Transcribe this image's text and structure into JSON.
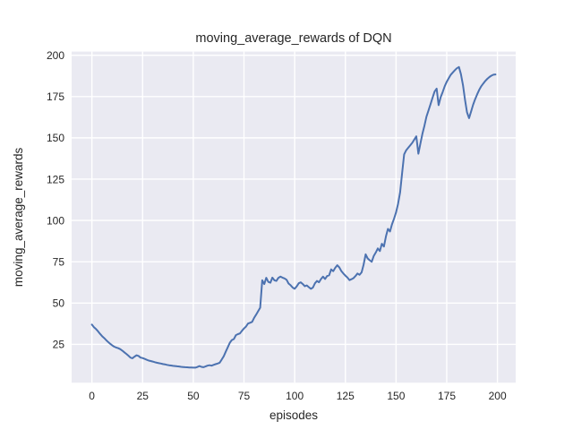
{
  "figure": {
    "background": "#ffffff",
    "plot_background": "#eaeaf2",
    "grid_color": "#ffffff",
    "text_color": "#262626"
  },
  "chart_data": {
    "type": "line",
    "title": "moving_average_rewards of DQN",
    "xlabel": "episodes",
    "ylabel": "moving_average_rewards",
    "x_ticks": [
      0,
      25,
      50,
      75,
      100,
      125,
      150,
      175,
      200
    ],
    "y_ticks": [
      25,
      50,
      75,
      100,
      125,
      150,
      175,
      200
    ],
    "xlim": [
      -10,
      209
    ],
    "ylim": [
      1.8,
      202.2
    ],
    "grid": true,
    "legend_position": "none",
    "series": [
      {
        "name": "DQN moving_average_rewards",
        "color": "#4c72b0",
        "points": [
          [
            0,
            37.0
          ],
          [
            1,
            35.4
          ],
          [
            2,
            34.3
          ],
          [
            3,
            33.0
          ],
          [
            4,
            31.4
          ],
          [
            5,
            30.0
          ],
          [
            6,
            28.9
          ],
          [
            7,
            27.6
          ],
          [
            8,
            26.4
          ],
          [
            9,
            25.4
          ],
          [
            10,
            24.4
          ],
          [
            11,
            23.6
          ],
          [
            12,
            23.1
          ],
          [
            13,
            22.7
          ],
          [
            14,
            22.1
          ],
          [
            15,
            21.2
          ],
          [
            16,
            20.2
          ],
          [
            17,
            19.2
          ],
          [
            18,
            18.2
          ],
          [
            19,
            17.0
          ],
          [
            20,
            16.6
          ],
          [
            21,
            17.6
          ],
          [
            22,
            18.4
          ],
          [
            23,
            18.0
          ],
          [
            24,
            17.0
          ],
          [
            25,
            16.7
          ],
          [
            26,
            16.2
          ],
          [
            27,
            15.7
          ],
          [
            28,
            15.2
          ],
          [
            29,
            14.9
          ],
          [
            30,
            14.6
          ],
          [
            31,
            14.2
          ],
          [
            32,
            13.9
          ],
          [
            33,
            13.6
          ],
          [
            34,
            13.4
          ],
          [
            35,
            13.1
          ],
          [
            36,
            12.9
          ],
          [
            37,
            12.6
          ],
          [
            38,
            12.4
          ],
          [
            39,
            12.2
          ],
          [
            40,
            12.0
          ],
          [
            41,
            11.9
          ],
          [
            42,
            11.7
          ],
          [
            43,
            11.6
          ],
          [
            44,
            11.4
          ],
          [
            45,
            11.3
          ],
          [
            46,
            11.2
          ],
          [
            47,
            11.1
          ],
          [
            48,
            11.0
          ],
          [
            49,
            11.0
          ],
          [
            50,
            10.9
          ],
          [
            51,
            10.9
          ],
          [
            52,
            11.3
          ],
          [
            53,
            11.9
          ],
          [
            54,
            11.4
          ],
          [
            55,
            11.2
          ],
          [
            56,
            11.6
          ],
          [
            57,
            12.1
          ],
          [
            58,
            12.4
          ],
          [
            59,
            12.1
          ],
          [
            60,
            12.6
          ],
          [
            61,
            13.0
          ],
          [
            62,
            13.4
          ],
          [
            63,
            13.9
          ],
          [
            64,
            15.8
          ],
          [
            65,
            17.8
          ],
          [
            66,
            20.5
          ],
          [
            67,
            23.2
          ],
          [
            68,
            26.0
          ],
          [
            69,
            27.6
          ],
          [
            70,
            28.2
          ],
          [
            71,
            30.6
          ],
          [
            72,
            31.2
          ],
          [
            73,
            31.6
          ],
          [
            74,
            33.2
          ],
          [
            75,
            34.6
          ],
          [
            76,
            35.8
          ],
          [
            77,
            37.6
          ],
          [
            78,
            38.1
          ],
          [
            79,
            38.6
          ],
          [
            80,
            41.0
          ],
          [
            81,
            43.0
          ],
          [
            82,
            45.2
          ],
          [
            83,
            47.2
          ],
          [
            84,
            63.8
          ],
          [
            85,
            61.5
          ],
          [
            86,
            65.3
          ],
          [
            87,
            62.8
          ],
          [
            88,
            62.3
          ],
          [
            89,
            65.4
          ],
          [
            90,
            63.8
          ],
          [
            91,
            63.4
          ],
          [
            92,
            65.3
          ],
          [
            93,
            66.0
          ],
          [
            94,
            65.4
          ],
          [
            95,
            64.9
          ],
          [
            96,
            64.1
          ],
          [
            97,
            61.8
          ],
          [
            98,
            60.8
          ],
          [
            99,
            59.4
          ],
          [
            100,
            58.6
          ],
          [
            101,
            60.1
          ],
          [
            102,
            62.0
          ],
          [
            103,
            62.6
          ],
          [
            104,
            61.5
          ],
          [
            105,
            60.2
          ],
          [
            106,
            60.7
          ],
          [
            107,
            59.6
          ],
          [
            108,
            58.6
          ],
          [
            109,
            59.4
          ],
          [
            110,
            62.0
          ],
          [
            111,
            63.4
          ],
          [
            112,
            62.6
          ],
          [
            113,
            64.6
          ],
          [
            114,
            66.0
          ],
          [
            115,
            64.6
          ],
          [
            116,
            66.4
          ],
          [
            117,
            66.8
          ],
          [
            118,
            70.4
          ],
          [
            119,
            69.3
          ],
          [
            120,
            71.3
          ],
          [
            121,
            72.9
          ],
          [
            122,
            71.6
          ],
          [
            123,
            69.4
          ],
          [
            124,
            67.9
          ],
          [
            125,
            66.6
          ],
          [
            126,
            65.5
          ],
          [
            127,
            63.9
          ],
          [
            128,
            64.4
          ],
          [
            129,
            65.1
          ],
          [
            130,
            66.4
          ],
          [
            131,
            67.9
          ],
          [
            132,
            67.1
          ],
          [
            133,
            68.6
          ],
          [
            134,
            73.2
          ],
          [
            135,
            79.5
          ],
          [
            136,
            77.0
          ],
          [
            137,
            75.9
          ],
          [
            138,
            75.0
          ],
          [
            139,
            78.6
          ],
          [
            140,
            80.6
          ],
          [
            141,
            83.1
          ],
          [
            142,
            81.5
          ],
          [
            143,
            85.9
          ],
          [
            144,
            84.2
          ],
          [
            145,
            90.4
          ],
          [
            146,
            94.9
          ],
          [
            147,
            93.3
          ],
          [
            148,
            97.6
          ],
          [
            149,
            101.0
          ],
          [
            150,
            105.0
          ],
          [
            151,
            110.0
          ],
          [
            152,
            117.0
          ],
          [
            153,
            129.0
          ],
          [
            154,
            140.0
          ],
          [
            155,
            142.5
          ],
          [
            156,
            144.0
          ],
          [
            157,
            145.5
          ],
          [
            158,
            147.0
          ],
          [
            159,
            149.0
          ],
          [
            160,
            150.9
          ],
          [
            161,
            140.4
          ],
          [
            162,
            146.6
          ],
          [
            163,
            152.4
          ],
          [
            164,
            157.4
          ],
          [
            165,
            162.8
          ],
          [
            166,
            166.6
          ],
          [
            167,
            170.4
          ],
          [
            168,
            174.2
          ],
          [
            169,
            178.0
          ],
          [
            170,
            179.8
          ],
          [
            171,
            169.8
          ],
          [
            172,
            174.6
          ],
          [
            173,
            177.8
          ],
          [
            174,
            181.2
          ],
          [
            175,
            184.0
          ],
          [
            176,
            186.2
          ],
          [
            177,
            188.2
          ],
          [
            178,
            189.6
          ],
          [
            179,
            191.0
          ],
          [
            180,
            192.1
          ],
          [
            181,
            192.9
          ],
          [
            182,
            188.6
          ],
          [
            183,
            182.0
          ],
          [
            184,
            173.0
          ],
          [
            185,
            165.5
          ],
          [
            186,
            161.9
          ],
          [
            187,
            166.0
          ],
          [
            188,
            170.0
          ],
          [
            189,
            173.4
          ],
          [
            190,
            176.4
          ],
          [
            191,
            179.0
          ],
          [
            192,
            181.2
          ],
          [
            193,
            182.9
          ],
          [
            194,
            184.4
          ],
          [
            195,
            185.7
          ],
          [
            196,
            186.8
          ],
          [
            197,
            187.6
          ],
          [
            198,
            188.2
          ],
          [
            199,
            188.4
          ]
        ]
      }
    ]
  }
}
